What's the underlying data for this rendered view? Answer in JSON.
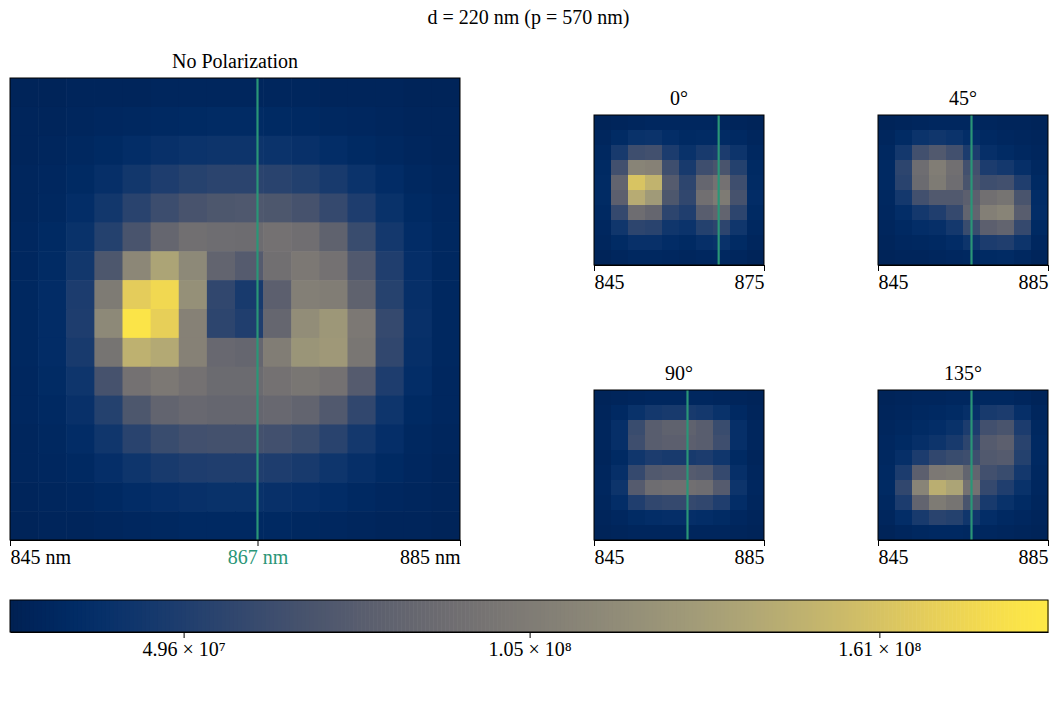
{
  "title": "d = 220 nm (p = 570 nm)",
  "colorbar": {
    "range": [
      21800000.0,
      188000000.0
    ],
    "ticks": [
      {
        "value": 49600000.0,
        "label": "4.96 × 10⁷"
      },
      {
        "value": 105000000.0,
        "label": "1.05 × 10⁸"
      },
      {
        "value": 161000000.0,
        "label": "1.61 × 10⁸"
      }
    ]
  },
  "chart_data": [
    {
      "type": "heatmap",
      "title": "No Polarization",
      "color": "cividis",
      "tick_labels": "x",
      "xlim": [
        845,
        885
      ],
      "xticks": [
        {
          "value": 845,
          "label": "845 nm"
        },
        {
          "value": 867,
          "label": "867 nm"
        },
        {
          "value": 885,
          "label": "885 nm"
        }
      ],
      "reference_line": 867,
      "cells": [
        [
          25000000.0,
          25000000.0,
          26000000.0,
          26000000.0,
          26000000.0,
          27000000.0,
          27000000.0,
          27000000.0,
          27000000.0,
          27000000.0,
          27000000.0,
          26000000.0,
          26000000.0,
          26000000.0,
          25000000.0,
          25000000.0
        ],
        [
          26000000.0,
          26000000.0,
          27000000.0,
          28000000.0,
          29000000.0,
          30000000.0,
          31000000.0,
          32000000.0,
          32000000.0,
          31000000.0,
          30000000.0,
          29000000.0,
          28000000.0,
          27000000.0,
          26000000.0,
          26000000.0
        ],
        [
          26000000.0,
          27000000.0,
          29000000.0,
          31000000.0,
          34000000.0,
          37000000.0,
          39000000.0,
          40000000.0,
          40000000.0,
          39000000.0,
          37000000.0,
          34000000.0,
          31000000.0,
          29000000.0,
          27000000.0,
          26000000.0
        ],
        [
          27000000.0,
          28000000.0,
          31000000.0,
          36000000.0,
          43000000.0,
          49000000.0,
          53000000.0,
          55000000.0,
          55000000.0,
          54000000.0,
          51000000.0,
          46000000.0,
          39000000.0,
          33000000.0,
          29000000.0,
          27000000.0
        ],
        [
          27000000.0,
          29000000.0,
          34000000.0,
          43000000.0,
          54000000.0,
          63000000.0,
          69000000.0,
          72000000.0,
          73000000.0,
          72000000.0,
          68000000.0,
          60000000.0,
          49000000.0,
          38000000.0,
          31000000.0,
          28000000.0
        ],
        [
          28000000.0,
          31000000.0,
          38000000.0,
          52000000.0,
          70000000.0,
          86000000.0,
          94000000.0,
          92000000.0,
          91000000.0,
          96000000.0,
          93000000.0,
          82000000.0,
          62000000.0,
          44000000.0,
          33000000.0,
          29000000.0
        ],
        [
          28000000.0,
          32000000.0,
          43000000.0,
          72000000.0,
          115000000.0,
          138000000.0,
          116000000.0,
          84000000.0,
          76000000.0,
          94000000.0,
          102000000.0,
          96000000.0,
          74000000.0,
          50000000.0,
          35000000.0,
          29000000.0
        ],
        [
          29000000.0,
          33000000.0,
          48000000.0,
          104000000.0,
          168000000.0,
          176000000.0,
          122000000.0,
          58000000.0,
          46000000.0,
          80000000.0,
          108000000.0,
          106000000.0,
          82000000.0,
          53000000.0,
          36000000.0,
          29000000.0
        ],
        [
          29000000.0,
          33000000.0,
          49000000.0,
          116000000.0,
          184000000.0,
          170000000.0,
          110000000.0,
          56000000.0,
          50000000.0,
          86000000.0,
          120000000.0,
          128000000.0,
          102000000.0,
          60000000.0,
          37000000.0,
          29000000.0
        ],
        [
          29000000.0,
          33000000.0,
          46000000.0,
          98000000.0,
          148000000.0,
          142000000.0,
          110000000.0,
          88000000.0,
          86000000.0,
          106000000.0,
          126000000.0,
          129000000.0,
          100000000.0,
          58000000.0,
          36000000.0,
          29000000.0
        ],
        [
          28000000.0,
          32000000.0,
          41000000.0,
          68000000.0,
          96000000.0,
          102000000.0,
          96000000.0,
          90000000.0,
          90000000.0,
          96000000.0,
          100000000.0,
          96000000.0,
          76000000.0,
          49000000.0,
          34000000.0,
          28000000.0
        ],
        [
          28000000.0,
          30000000.0,
          37000000.0,
          52000000.0,
          72000000.0,
          84000000.0,
          88000000.0,
          86000000.0,
          86000000.0,
          88000000.0,
          84000000.0,
          74000000.0,
          58000000.0,
          41000000.0,
          31000000.0,
          28000000.0
        ],
        [
          27000000.0,
          29000000.0,
          33000000.0,
          42000000.0,
          54000000.0,
          62000000.0,
          66000000.0,
          67000000.0,
          67000000.0,
          66000000.0,
          62000000.0,
          54000000.0,
          44000000.0,
          35000000.0,
          29000000.0,
          27000000.0
        ],
        [
          27000000.0,
          28000000.0,
          30000000.0,
          35000000.0,
          41000000.0,
          46000000.0,
          49000000.0,
          50000000.0,
          50000000.0,
          49000000.0,
          46000000.0,
          41000000.0,
          36000000.0,
          31000000.0,
          28000000.0,
          26000000.0
        ],
        [
          26000000.0,
          27000000.0,
          28000000.0,
          30000000.0,
          33000000.0,
          35000000.0,
          37000000.0,
          38000000.0,
          38000000.0,
          37000000.0,
          35000000.0,
          33000000.0,
          30000000.0,
          28000000.0,
          27000000.0,
          26000000.0
        ],
        [
          25000000.0,
          26000000.0,
          26000000.0,
          27000000.0,
          28000000.0,
          29000000.0,
          30000000.0,
          30000000.0,
          30000000.0,
          30000000.0,
          29000000.0,
          28000000.0,
          27000000.0,
          26000000.0,
          26000000.0,
          25000000.0
        ]
      ]
    },
    {
      "type": "heatmap",
      "title": "0°",
      "color": "cividis",
      "tick_labels": "x",
      "xlim": [
        845,
        875
      ],
      "xticks": [
        845,
        875
      ],
      "reference_line": 867,
      "cells": [
        [
          25000000.0,
          26000000.0,
          27000000.0,
          28000000.0,
          28000000.0,
          28000000.0,
          28000000.0,
          27000000.0,
          26000000.0,
          25000000.0
        ],
        [
          27000000.0,
          32000000.0,
          38000000.0,
          39000000.0,
          34000000.0,
          31000000.0,
          32000000.0,
          32000000.0,
          30000000.0,
          27000000.0
        ],
        [
          29000000.0,
          46000000.0,
          64000000.0,
          66000000.0,
          48000000.0,
          38000000.0,
          46000000.0,
          48000000.0,
          40000000.0,
          29000000.0
        ],
        [
          31000000.0,
          66000000.0,
          112000000.0,
          110000000.0,
          64000000.0,
          46000000.0,
          64000000.0,
          70000000.0,
          52000000.0,
          31000000.0
        ],
        [
          32000000.0,
          84000000.0,
          162000000.0,
          150000000.0,
          76000000.0,
          56000000.0,
          86000000.0,
          96000000.0,
          64000000.0,
          32000000.0
        ],
        [
          32000000.0,
          80000000.0,
          144000000.0,
          130000000.0,
          72000000.0,
          58000000.0,
          94000000.0,
          104000000.0,
          68000000.0,
          33000000.0
        ],
        [
          30000000.0,
          60000000.0,
          92000000.0,
          86000000.0,
          56000000.0,
          50000000.0,
          78000000.0,
          84000000.0,
          56000000.0,
          31000000.0
        ],
        [
          28000000.0,
          42000000.0,
          56000000.0,
          54000000.0,
          42000000.0,
          39000000.0,
          52000000.0,
          56000000.0,
          42000000.0,
          29000000.0
        ],
        [
          27000000.0,
          32000000.0,
          37000000.0,
          37000000.0,
          33000000.0,
          31000000.0,
          36000000.0,
          38000000.0,
          32000000.0,
          27000000.0
        ],
        [
          25000000.0,
          27000000.0,
          29000000.0,
          29000000.0,
          28000000.0,
          27000000.0,
          28000000.0,
          29000000.0,
          27000000.0,
          25000000.0
        ]
      ]
    },
    {
      "type": "heatmap",
      "title": "45°",
      "color": "cividis",
      "tick_labels": "x",
      "xlim": [
        845,
        885
      ],
      "xticks": [
        845,
        885
      ],
      "reference_line": 867,
      "cells": [
        [
          25000000.0,
          26000000.0,
          27000000.0,
          28000000.0,
          28000000.0,
          28000000.0,
          27000000.0,
          26000000.0,
          26000000.0,
          25000000.0
        ],
        [
          27000000.0,
          32000000.0,
          39000000.0,
          42000000.0,
          39000000.0,
          34000000.0,
          30000000.0,
          28000000.0,
          27000000.0,
          26000000.0
        ],
        [
          29000000.0,
          44000000.0,
          66000000.0,
          74000000.0,
          66000000.0,
          48000000.0,
          36000000.0,
          32000000.0,
          29000000.0,
          27000000.0
        ],
        [
          30000000.0,
          56000000.0,
          92000000.0,
          106000000.0,
          94000000.0,
          66000000.0,
          48000000.0,
          44000000.0,
          36000000.0,
          29000000.0
        ],
        [
          30000000.0,
          54000000.0,
          90000000.0,
          104000000.0,
          92000000.0,
          70000000.0,
          64000000.0,
          66000000.0,
          50000000.0,
          31000000.0
        ],
        [
          29000000.0,
          44000000.0,
          66000000.0,
          74000000.0,
          74000000.0,
          80000000.0,
          94000000.0,
          98000000.0,
          70000000.0,
          33000000.0
        ],
        [
          28000000.0,
          34000000.0,
          44000000.0,
          50000000.0,
          60000000.0,
          84000000.0,
          108000000.0,
          112000000.0,
          78000000.0,
          34000000.0
        ],
        [
          27000000.0,
          30000000.0,
          34000000.0,
          36000000.0,
          44000000.0,
          62000000.0,
          80000000.0,
          84000000.0,
          60000000.0,
          31000000.0
        ],
        [
          26000000.0,
          28000000.0,
          29000000.0,
          30000000.0,
          33000000.0,
          40000000.0,
          48000000.0,
          50000000.0,
          40000000.0,
          28000000.0
        ],
        [
          25000000.0,
          26000000.0,
          26000000.0,
          27000000.0,
          28000000.0,
          29000000.0,
          31000000.0,
          32000000.0,
          29000000.0,
          26000000.0
        ]
      ]
    },
    {
      "type": "heatmap",
      "title": "90°",
      "color": "cividis",
      "tick_labels": "x",
      "xlim": [
        845,
        885
      ],
      "xticks": [
        845,
        885
      ],
      "reference_line": 867,
      "cells": [
        [
          25000000.0,
          26000000.0,
          27000000.0,
          28000000.0,
          28000000.0,
          28000000.0,
          28000000.0,
          27000000.0,
          26000000.0,
          25000000.0
        ],
        [
          26000000.0,
          30000000.0,
          38000000.0,
          44000000.0,
          46000000.0,
          46000000.0,
          44000000.0,
          38000000.0,
          30000000.0,
          26000000.0
        ],
        [
          27000000.0,
          36000000.0,
          62000000.0,
          78000000.0,
          82000000.0,
          82000000.0,
          78000000.0,
          62000000.0,
          36000000.0,
          27000000.0
        ],
        [
          27000000.0,
          36000000.0,
          64000000.0,
          78000000.0,
          80000000.0,
          80000000.0,
          78000000.0,
          64000000.0,
          36000000.0,
          27000000.0
        ],
        [
          26000000.0,
          31000000.0,
          42000000.0,
          48000000.0,
          46000000.0,
          46000000.0,
          48000000.0,
          42000000.0,
          31000000.0,
          26000000.0
        ],
        [
          27000000.0,
          36000000.0,
          60000000.0,
          74000000.0,
          76000000.0,
          76000000.0,
          74000000.0,
          60000000.0,
          36000000.0,
          27000000.0
        ],
        [
          28000000.0,
          40000000.0,
          76000000.0,
          92000000.0,
          94000000.0,
          94000000.0,
          92000000.0,
          76000000.0,
          40000000.0,
          28000000.0
        ],
        [
          27000000.0,
          34000000.0,
          50000000.0,
          58000000.0,
          60000000.0,
          60000000.0,
          58000000.0,
          50000000.0,
          34000000.0,
          27000000.0
        ],
        [
          26000000.0,
          28000000.0,
          32000000.0,
          34000000.0,
          35000000.0,
          35000000.0,
          34000000.0,
          32000000.0,
          28000000.0,
          26000000.0
        ],
        [
          25000000.0,
          26000000.0,
          27000000.0,
          27000000.0,
          27000000.0,
          27000000.0,
          27000000.0,
          27000000.0,
          26000000.0,
          25000000.0
        ]
      ]
    },
    {
      "type": "heatmap",
      "title": "135°",
      "color": "cividis",
      "tick_labels": "x",
      "xlim": [
        845,
        885
      ],
      "xticks": [
        845,
        885
      ],
      "reference_line": 867,
      "cells": [
        [
          25000000.0,
          26000000.0,
          27000000.0,
          27000000.0,
          28000000.0,
          28000000.0,
          29000000.0,
          29000000.0,
          27000000.0,
          25000000.0
        ],
        [
          26000000.0,
          27000000.0,
          29000000.0,
          30000000.0,
          32000000.0,
          36000000.0,
          46000000.0,
          48000000.0,
          36000000.0,
          27000000.0
        ],
        [
          27000000.0,
          29000000.0,
          32000000.0,
          34000000.0,
          38000000.0,
          48000000.0,
          66000000.0,
          70000000.0,
          48000000.0,
          29000000.0
        ],
        [
          28000000.0,
          31000000.0,
          36000000.0,
          40000000.0,
          46000000.0,
          56000000.0,
          76000000.0,
          80000000.0,
          54000000.0,
          30000000.0
        ],
        [
          29000000.0,
          36000000.0,
          48000000.0,
          58000000.0,
          62000000.0,
          64000000.0,
          74000000.0,
          76000000.0,
          52000000.0,
          30000000.0
        ],
        [
          30000000.0,
          48000000.0,
          80000000.0,
          102000000.0,
          104000000.0,
          84000000.0,
          66000000.0,
          62000000.0,
          44000000.0,
          29000000.0
        ],
        [
          31000000.0,
          58000000.0,
          112000000.0,
          146000000.0,
          138000000.0,
          96000000.0,
          60000000.0,
          50000000.0,
          38000000.0,
          28000000.0
        ],
        [
          29000000.0,
          48000000.0,
          84000000.0,
          104000000.0,
          98000000.0,
          70000000.0,
          46000000.0,
          38000000.0,
          32000000.0,
          27000000.0
        ],
        [
          27000000.0,
          34000000.0,
          46000000.0,
          54000000.0,
          52000000.0,
          42000000.0,
          34000000.0,
          30000000.0,
          28000000.0,
          26000000.0
        ],
        [
          25000000.0,
          27000000.0,
          29000000.0,
          30000000.0,
          30000000.0,
          29000000.0,
          28000000.0,
          27000000.0,
          26000000.0,
          25000000.0
        ]
      ]
    }
  ]
}
